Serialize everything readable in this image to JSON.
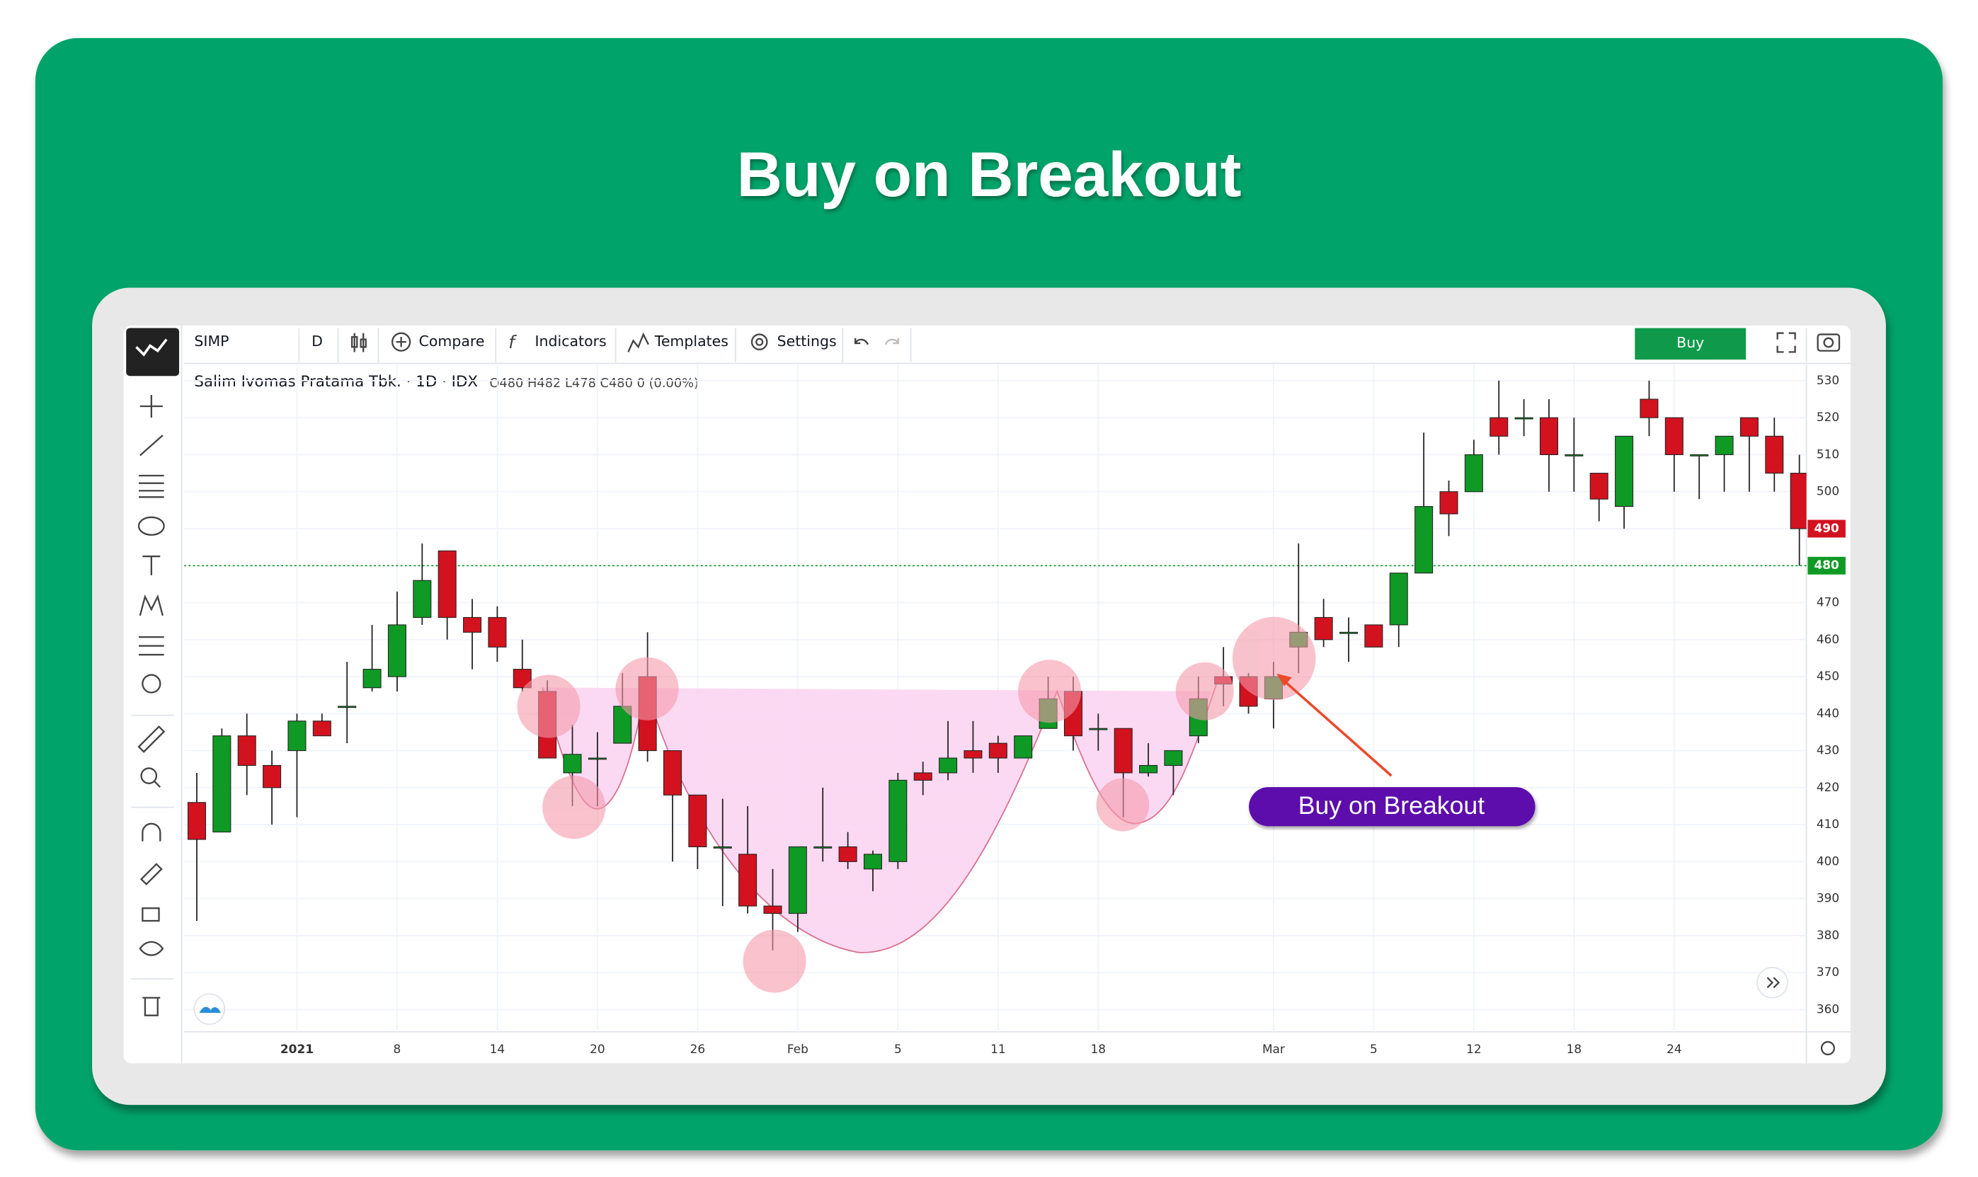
{
  "title": "Buy on Breakout",
  "toolbar": {
    "symbol": "SIMP",
    "interval": "D",
    "compare": "Compare",
    "indicators": "Indicators",
    "templates": "Templates",
    "settings": "Settings",
    "buy": "Buy"
  },
  "legend": {
    "name": "Salim Ivomas Pratama Tbk. · 1D · IDX",
    "ohlc": "O480 H482 L478 C480 0 (0.00%)"
  },
  "chart_data": {
    "type": "candlestick",
    "categories": [
      null,
      null,
      null,
      null,
      "2021",
      null,
      null,
      null,
      "8",
      null,
      null,
      null,
      "14",
      null,
      null,
      null,
      "20",
      null,
      null,
      null,
      "26",
      null,
      null,
      null,
      "Feb",
      null,
      null,
      null,
      "5",
      null,
      null,
      null,
      "11",
      null,
      null,
      null,
      "18",
      null,
      null,
      null,
      null,
      null,
      null,
      "Mar",
      null,
      null,
      null,
      "5",
      null,
      null,
      null,
      "12",
      null,
      null,
      null,
      "18",
      null,
      null,
      null,
      "24",
      null,
      null,
      null,
      null,
      null
    ],
    "open": [
      416,
      408,
      434,
      426,
      430,
      438,
      442,
      447,
      450,
      466,
      484,
      466,
      466,
      452,
      446,
      424,
      428,
      432,
      450,
      430,
      418,
      404,
      402,
      388,
      386,
      404,
      404,
      398,
      400,
      424,
      424,
      430,
      432,
      428,
      436,
      446,
      436,
      436,
      424,
      426,
      434,
      450,
      450,
      444,
      458,
      466,
      462,
      464,
      464,
      478,
      500,
      500,
      520,
      520,
      520,
      510,
      505,
      496,
      525,
      520,
      510,
      510,
      520,
      515,
      505
    ],
    "high": [
      424,
      436,
      440,
      430,
      440,
      440,
      454,
      464,
      473,
      486,
      484,
      471,
      469,
      460,
      449,
      437,
      435,
      451,
      462,
      430,
      418,
      417,
      415,
      398,
      404,
      420,
      408,
      403,
      424,
      427,
      438,
      438,
      434,
      434,
      450,
      450,
      440,
      436,
      432,
      430,
      450,
      458,
      451,
      454,
      486,
      471,
      466,
      464,
      478,
      516,
      503,
      514,
      530,
      525,
      525,
      520,
      505,
      515,
      530,
      520,
      510,
      515,
      520,
      520,
      510
    ],
    "low": [
      384,
      408,
      418,
      410,
      412,
      434,
      432,
      446,
      446,
      464,
      460,
      452,
      454,
      446,
      428,
      415,
      415,
      432,
      427,
      400,
      398,
      388,
      386,
      376,
      381,
      400,
      398,
      392,
      398,
      418,
      422,
      424,
      424,
      428,
      436,
      430,
      430,
      412,
      423,
      418,
      432,
      442,
      440,
      436,
      451,
      458,
      454,
      458,
      458,
      478,
      488,
      500,
      510,
      515,
      500,
      500,
      492,
      490,
      515,
      500,
      498,
      500,
      500,
      500,
      480
    ],
    "close": [
      406,
      434,
      426,
      420,
      438,
      434,
      442,
      452,
      464,
      476,
      466,
      462,
      458,
      447,
      428,
      429,
      428,
      442,
      430,
      418,
      404,
      404,
      388,
      386,
      404,
      404,
      400,
      402,
      422,
      422,
      428,
      428,
      428,
      434,
      444,
      434,
      436,
      424,
      426,
      430,
      444,
      448,
      442,
      450,
      462,
      460,
      462,
      458,
      478,
      496,
      494,
      510,
      515,
      520,
      510,
      510,
      498,
      515,
      520,
      510,
      510,
      515,
      515,
      505,
      490
    ],
    "up_color": "#0e9a24",
    "down_color": "#d3121f",
    "ylim": [
      354,
      534
    ],
    "yticks": [
      360,
      370,
      380,
      390,
      400,
      410,
      420,
      430,
      440,
      450,
      460,
      470,
      480,
      490,
      500,
      510,
      520,
      530
    ],
    "grid": true,
    "price_tags": [
      490,
      480
    ],
    "price_tag_colors": [
      "#d3121f",
      "#0e9a24"
    ],
    "annotation": "Buy on Breakout"
  }
}
